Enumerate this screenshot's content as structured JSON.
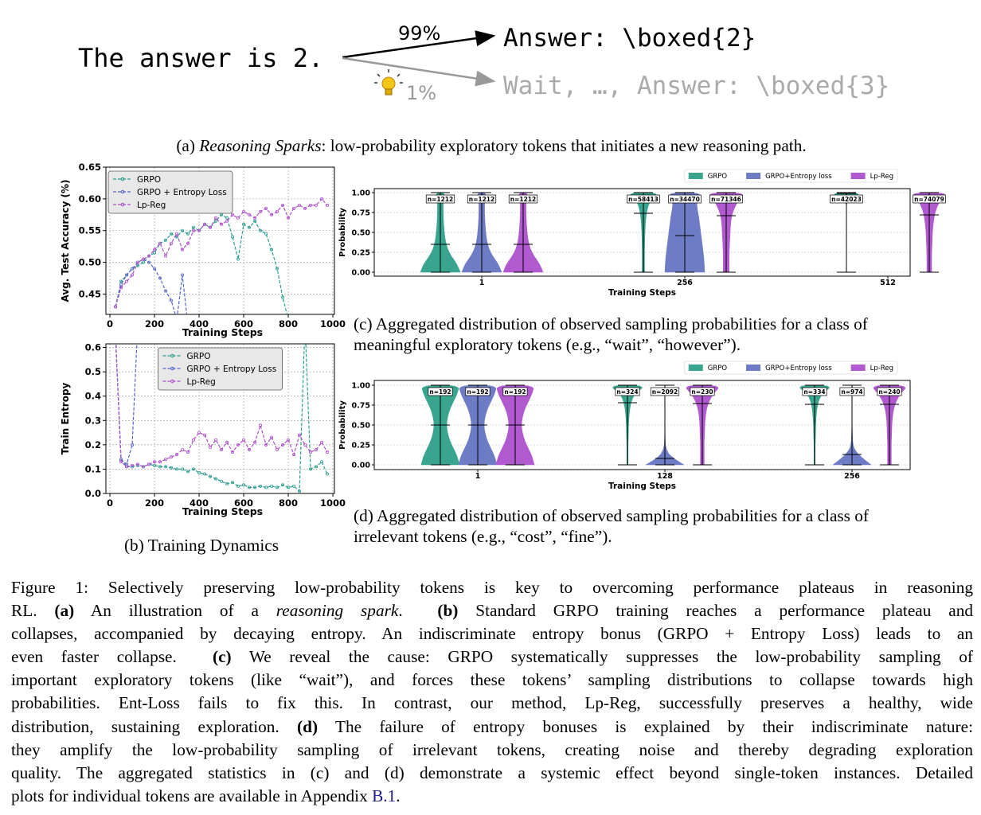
{
  "panel_a": {
    "prompt": "The answer is 2.",
    "high_prob": "99%",
    "high_path": "Answer: \\boxed{2}",
    "low_prob": "1%",
    "low_path": "Wait, …, Answer: \\boxed{3}"
  },
  "caption_a": {
    "label": "(a) ",
    "italic": "Reasoning Sparks",
    "rest": ": low-probability exploratory tokens that initiates a new reasoning path."
  },
  "chart_data": [
    {
      "type": "line",
      "xlabel": "Training Steps",
      "ylabel": "Avg. Test Accuracy (%)",
      "grid": true,
      "legend": "upper left",
      "xlim": [
        -18,
        1007
      ],
      "ylim": [
        0.418,
        0.65
      ],
      "xticks": [
        0,
        200,
        400,
        600,
        800,
        1000
      ],
      "yticks": [
        0.45,
        {
          "value": 0.5,
          "label": "0.50"
        },
        0.55,
        {
          "value": 0.6,
          "label": "0.60"
        },
        0.65
      ],
      "x": [
        25,
        50,
        75,
        100,
        125,
        150,
        175,
        200,
        225,
        250,
        275,
        300,
        325,
        350,
        375,
        400,
        425,
        450,
        475,
        500,
        525,
        550,
        575,
        600,
        625,
        650,
        675,
        700,
        725,
        750,
        775,
        800,
        825,
        850,
        875,
        900,
        925,
        950,
        975
      ],
      "series": [
        {
          "name": "GRPO",
          "color": "#2a9d8f",
          "values": [
            0.43,
            0.47,
            0.48,
            0.49,
            0.495,
            0.5,
            0.51,
            0.515,
            0.53,
            0.535,
            0.545,
            0.54,
            0.55,
            0.545,
            0.555,
            0.55,
            0.56,
            0.555,
            0.565,
            0.575,
            0.57,
            0.54,
            0.505,
            0.56,
            0.555,
            0.565,
            0.55,
            0.545,
            0.52,
            0.49,
            0.445,
            0.41,
            null,
            null,
            null,
            null,
            null,
            null,
            null
          ]
        },
        {
          "name": "GRPO + Entropy Loss",
          "color": "#5566c8",
          "values": [
            0.43,
            0.465,
            0.48,
            0.49,
            0.5,
            0.505,
            0.5,
            0.49,
            0.475,
            0.455,
            0.44,
            0.41,
            0.48,
            0.4,
            null,
            null,
            null,
            null,
            null,
            null,
            null,
            null,
            null,
            null,
            null,
            null,
            null,
            null,
            null,
            null,
            null,
            null,
            null,
            null,
            null,
            null,
            null,
            null,
            null
          ]
        },
        {
          "name": "Lp-Reg",
          "color": "#b04fcf",
          "values": [
            0.43,
            0.46,
            0.47,
            0.48,
            0.5,
            0.505,
            0.51,
            0.52,
            0.53,
            0.51,
            0.53,
            0.545,
            0.52,
            0.53,
            0.55,
            0.55,
            0.56,
            0.555,
            0.57,
            0.56,
            0.565,
            0.575,
            0.57,
            0.58,
            0.575,
            0.57,
            0.58,
            0.585,
            0.575,
            0.58,
            0.59,
            0.57,
            0.585,
            0.59,
            0.585,
            0.59,
            0.59,
            0.6,
            0.59
          ]
        }
      ]
    },
    {
      "type": "line",
      "xlabel": "Training Steps",
      "ylabel": "Train Entropy",
      "grid": true,
      "legend": "upper center",
      "xlim": [
        -18,
        1007
      ],
      "ylim": [
        0,
        0.615
      ],
      "xticks": [
        0,
        200,
        400,
        600,
        800,
        1000
      ],
      "yticks": [
        {
          "value": 0,
          "label": "0.0"
        },
        0.1,
        0.2,
        0.3,
        0.4,
        0.5,
        0.6
      ],
      "x": [
        25,
        50,
        75,
        100,
        125,
        150,
        175,
        200,
        225,
        250,
        275,
        300,
        325,
        350,
        375,
        400,
        425,
        450,
        475,
        500,
        525,
        550,
        575,
        600,
        625,
        650,
        675,
        700,
        725,
        750,
        775,
        800,
        825,
        850,
        875,
        900,
        925,
        950,
        975
      ],
      "series": [
        {
          "name": "GRPO",
          "color": "#2a9d8f",
          "values": [
            0.65,
            0.14,
            0.11,
            0.11,
            0.115,
            0.11,
            0.12,
            0.115,
            0.11,
            0.11,
            0.105,
            0.1,
            0.1,
            0.09,
            0.1,
            0.085,
            0.08,
            0.07,
            0.06,
            0.05,
            0.04,
            0.045,
            0.03,
            0.035,
            0.025,
            0.025,
            0.03,
            0.025,
            0.03,
            0.025,
            0.035,
            0.025,
            0.03,
            0.01,
            0.7,
            0.1,
            0.11,
            0.13,
            0.08
          ]
        },
        {
          "name": "GRPO + Entropy Loss",
          "color": "#5566c8",
          "values": [
            0.65,
            0.14,
            0.12,
            0.2,
            0.7,
            null,
            null,
            null,
            null,
            null,
            null,
            null,
            null,
            null,
            null,
            null,
            null,
            null,
            null,
            null,
            null,
            null,
            null,
            null,
            null,
            null,
            null,
            null,
            null,
            null,
            null,
            null,
            null,
            null,
            null,
            null,
            null,
            null,
            null
          ]
        },
        {
          "name": "Lp-Reg",
          "color": "#b04fcf",
          "values": [
            0.65,
            0.13,
            0.11,
            0.115,
            0.12,
            0.11,
            0.12,
            0.13,
            0.13,
            0.14,
            0.15,
            0.16,
            0.18,
            0.17,
            0.22,
            0.25,
            0.24,
            0.19,
            0.22,
            0.18,
            0.21,
            0.17,
            0.2,
            0.22,
            0.18,
            0.21,
            0.28,
            0.2,
            0.23,
            0.18,
            0.2,
            0.22,
            0.16,
            0.24,
            0.2,
            0.17,
            0.18,
            0.21,
            0.17
          ]
        }
      ]
    },
    {
      "type": "violin",
      "xlabel": "Training Steps",
      "ylabel": "Probability",
      "grid": true,
      "legend": "upper right",
      "categories": [
        "1",
        "256",
        "512"
      ],
      "ylim": [
        -0.05,
        1.05
      ],
      "yticks": [
        {
          "value": 0,
          "label": "0.00"
        },
        {
          "value": 0.25,
          "label": "0.25"
        },
        {
          "value": 0.5,
          "label": "0.50"
        },
        {
          "value": 0.75,
          "label": "0.75"
        },
        {
          "value": 1,
          "label": "1.00"
        }
      ],
      "levels": [
        0,
        0.1,
        0.2,
        0.3,
        0.4,
        0.5,
        0.6,
        0.7,
        0.8,
        0.9,
        1
      ],
      "series": [
        {
          "name": "GRPO",
          "color": "#3aa58f",
          "n_labels": [
            "n=1212",
            "n=58413",
            "n=42023"
          ],
          "medians": [
            0.35,
            0.74,
            0.99
          ],
          "densities": [
            [
              1,
              0.85,
              0.55,
              0.35,
              0.25,
              0.2,
              0.17,
              0.15,
              0.14,
              0.15,
              0.25
            ],
            [
              0.06,
              0.06,
              0.06,
              0.06,
              0.07,
              0.08,
              0.1,
              0.13,
              0.2,
              0.35,
              0.85
            ],
            [
              0,
              0,
              0,
              0,
              0,
              0,
              0,
              0,
              0,
              0.02,
              0.9
            ]
          ]
        },
        {
          "name": "GRPO+Entropy loss",
          "color": "#6e7cc6",
          "n_labels": [
            "n=1212",
            "n=34470",
            null
          ],
          "medians": [
            0.35,
            0.46,
            null
          ],
          "densities": [
            [
              1,
              0.85,
              0.55,
              0.35,
              0.25,
              0.2,
              0.17,
              0.15,
              0.14,
              0.15,
              0.25
            ],
            [
              1,
              0.98,
              0.95,
              0.9,
              0.85,
              0.8,
              0.75,
              0.7,
              0.62,
              0.6,
              0.9
            ],
            null
          ]
        },
        {
          "name": "Lp-Reg",
          "color": "#b159cf",
          "n_labels": [
            "n=1212",
            "n=71346",
            "n=74079"
          ],
          "medians": [
            0.35,
            0.71,
            0.72
          ],
          "densities": [
            [
              1,
              0.85,
              0.55,
              0.35,
              0.25,
              0.2,
              0.17,
              0.15,
              0.14,
              0.15,
              0.25
            ],
            [
              0.15,
              0.15,
              0.15,
              0.16,
              0.18,
              0.2,
              0.22,
              0.26,
              0.4,
              0.6,
              1
            ],
            [
              0.12,
              0.12,
              0.12,
              0.13,
              0.15,
              0.16,
              0.2,
              0.25,
              0.35,
              0.55,
              1
            ]
          ]
        }
      ]
    },
    {
      "type": "violin",
      "xlabel": "Training Steps",
      "ylabel": "Probability",
      "grid": true,
      "legend": "upper right",
      "categories": [
        "1",
        "128",
        "256"
      ],
      "ylim": [
        -0.06,
        1.06
      ],
      "yticks": [
        {
          "value": 0,
          "label": "0.00"
        },
        {
          "value": 0.25,
          "label": "0.25"
        },
        {
          "value": 0.5,
          "label": "0.50"
        },
        {
          "value": 0.75,
          "label": "0.75"
        },
        {
          "value": 1,
          "label": "1.00"
        }
      ],
      "levels": [
        0,
        0.1,
        0.2,
        0.3,
        0.4,
        0.5,
        0.6,
        0.7,
        0.8,
        0.9,
        1
      ],
      "series": [
        {
          "name": "GRPO",
          "color": "#3aa58f",
          "n_labels": [
            "n=192",
            "n=324",
            "n=334"
          ],
          "medians": [
            0.5,
            0.78,
            0.76
          ],
          "densities": [
            [
              1,
              0.9,
              0.7,
              0.5,
              0.38,
              0.32,
              0.38,
              0.5,
              0.7,
              0.9,
              1
            ],
            [
              0.03,
              0.03,
              0.03,
              0.04,
              0.05,
              0.06,
              0.08,
              0.12,
              0.2,
              0.4,
              1
            ],
            [
              0.03,
              0.03,
              0.03,
              0.04,
              0.05,
              0.06,
              0.08,
              0.12,
              0.2,
              0.4,
              1
            ]
          ]
        },
        {
          "name": "GRPO+Entropy loss",
          "color": "#6e7cc6",
          "n_labels": [
            "n=192",
            "n=2092",
            "n=974"
          ],
          "medians": [
            0.5,
            0.08,
            0.13
          ],
          "densities": [
            [
              1,
              0.9,
              0.7,
              0.5,
              0.38,
              0.32,
              0.38,
              0.5,
              0.7,
              0.9,
              1
            ],
            [
              1,
              0.3,
              0.05,
              0.02,
              0.01,
              0.01,
              0.01,
              0.01,
              0.01,
              0.01,
              0.02
            ],
            [
              1,
              0.45,
              0.1,
              0.03,
              0.02,
              0.01,
              0.01,
              0.01,
              0.01,
              0.01,
              0.02
            ]
          ]
        },
        {
          "name": "Lp-Reg",
          "color": "#b159cf",
          "n_labels": [
            "n=192",
            "n=230",
            "n=240"
          ],
          "medians": [
            0.5,
            0.77,
            0.76
          ],
          "densities": [
            [
              1,
              0.9,
              0.7,
              0.5,
              0.38,
              0.32,
              0.38,
              0.5,
              0.7,
              0.9,
              1
            ],
            [
              0.1,
              0.1,
              0.1,
              0.1,
              0.12,
              0.13,
              0.16,
              0.22,
              0.35,
              0.6,
              1
            ],
            [
              0.1,
              0.1,
              0.1,
              0.1,
              0.12,
              0.13,
              0.16,
              0.22,
              0.35,
              0.6,
              1
            ]
          ]
        }
      ]
    }
  ],
  "caption_b": "(b) Training Dynamics",
  "caption_c": [
    "(c) Aggregated distribution of observed sampling probabilities for a class of",
    "meaningful exploratory tokens (e.g., “wait”, “however”)."
  ],
  "caption_d": [
    "(d) Aggregated distribution of observed sampling probabilities for a class of",
    "irrelevant tokens (e.g., “cost”, “fine”)."
  ],
  "figure_caption": [
    [
      "Figure 1: Selectively preserving low-probability tokens is key to overcoming performance plateaus in reasoning"
    ],
    [
      "RL. ",
      "(a)",
      " An illustration of a ",
      "reasoning spark",
      ".  ",
      "(b)",
      " Standard GRPO training reaches a performance plateau and"
    ],
    [
      "collapses, accompanied by decaying entropy. An indiscriminate entropy bonus (GRPO + Entropy Loss) leads to an"
    ],
    [
      "even faster collapse.  ",
      "(c)",
      " We reveal the cause: GRPO systematically suppresses the low-probability sampling of"
    ],
    [
      "important exploratory tokens (like “wait”), and forces these tokens’ sampling distributions to collapse towards high"
    ],
    [
      "probabilities. Ent-Loss fails to fix this. In contrast, our method, Lp-Reg, successfully preserves a healthy, wide"
    ],
    [
      "distribution, sustaining exploration. ",
      "(d)",
      " The failure of entropy bonuses is explained by their indiscriminate nature:"
    ],
    [
      "they amplify the low-probability sampling of irrelevant tokens, creating noise and thereby degrading exploration"
    ],
    [
      "quality. The aggregated statistics in (c) and (d) demonstrate a systemic effect beyond single-token instances. Detailed"
    ],
    [
      "plots for individual tokens are available in Appendix ",
      "B.1",
      "."
    ]
  ]
}
